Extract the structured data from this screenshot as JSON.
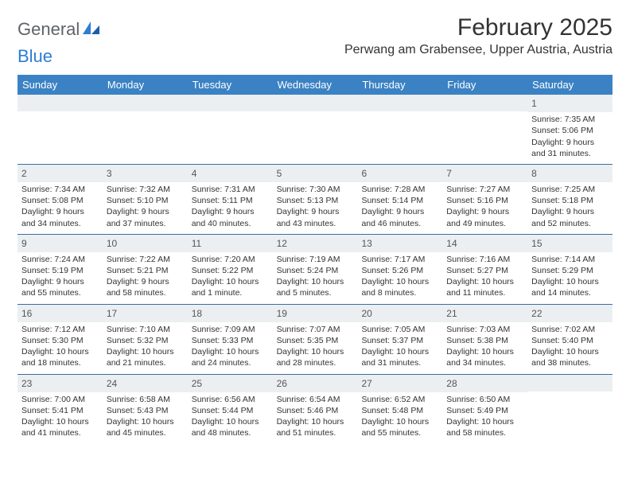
{
  "logo": {
    "general": "General",
    "blue": "Blue"
  },
  "title": "February 2025",
  "location": "Perwang am Grabensee, Upper Austria, Austria",
  "colors": {
    "header_bg": "#3b82c4",
    "header_text": "#ffffff",
    "band_bg": "#eceff1",
    "rule": "#3b6ea5",
    "text": "#333333",
    "logo_gray": "#5f6368",
    "logo_blue": "#2d7dd2"
  },
  "fonts": {
    "title_size_pt": 23,
    "location_size_pt": 12,
    "dow_size_pt": 10,
    "daynum_size_pt": 9,
    "body_size_pt": 8
  },
  "days_of_week": [
    "Sunday",
    "Monday",
    "Tuesday",
    "Wednesday",
    "Thursday",
    "Friday",
    "Saturday"
  ],
  "weeks": [
    [
      null,
      null,
      null,
      null,
      null,
      null,
      {
        "n": "1",
        "sr": "Sunrise: 7:35 AM",
        "ss": "Sunset: 5:06 PM",
        "dl1": "Daylight: 9 hours",
        "dl2": "and 31 minutes."
      }
    ],
    [
      {
        "n": "2",
        "sr": "Sunrise: 7:34 AM",
        "ss": "Sunset: 5:08 PM",
        "dl1": "Daylight: 9 hours",
        "dl2": "and 34 minutes."
      },
      {
        "n": "3",
        "sr": "Sunrise: 7:32 AM",
        "ss": "Sunset: 5:10 PM",
        "dl1": "Daylight: 9 hours",
        "dl2": "and 37 minutes."
      },
      {
        "n": "4",
        "sr": "Sunrise: 7:31 AM",
        "ss": "Sunset: 5:11 PM",
        "dl1": "Daylight: 9 hours",
        "dl2": "and 40 minutes."
      },
      {
        "n": "5",
        "sr": "Sunrise: 7:30 AM",
        "ss": "Sunset: 5:13 PM",
        "dl1": "Daylight: 9 hours",
        "dl2": "and 43 minutes."
      },
      {
        "n": "6",
        "sr": "Sunrise: 7:28 AM",
        "ss": "Sunset: 5:14 PM",
        "dl1": "Daylight: 9 hours",
        "dl2": "and 46 minutes."
      },
      {
        "n": "7",
        "sr": "Sunrise: 7:27 AM",
        "ss": "Sunset: 5:16 PM",
        "dl1": "Daylight: 9 hours",
        "dl2": "and 49 minutes."
      },
      {
        "n": "8",
        "sr": "Sunrise: 7:25 AM",
        "ss": "Sunset: 5:18 PM",
        "dl1": "Daylight: 9 hours",
        "dl2": "and 52 minutes."
      }
    ],
    [
      {
        "n": "9",
        "sr": "Sunrise: 7:24 AM",
        "ss": "Sunset: 5:19 PM",
        "dl1": "Daylight: 9 hours",
        "dl2": "and 55 minutes."
      },
      {
        "n": "10",
        "sr": "Sunrise: 7:22 AM",
        "ss": "Sunset: 5:21 PM",
        "dl1": "Daylight: 9 hours",
        "dl2": "and 58 minutes."
      },
      {
        "n": "11",
        "sr": "Sunrise: 7:20 AM",
        "ss": "Sunset: 5:22 PM",
        "dl1": "Daylight: 10 hours",
        "dl2": "and 1 minute."
      },
      {
        "n": "12",
        "sr": "Sunrise: 7:19 AM",
        "ss": "Sunset: 5:24 PM",
        "dl1": "Daylight: 10 hours",
        "dl2": "and 5 minutes."
      },
      {
        "n": "13",
        "sr": "Sunrise: 7:17 AM",
        "ss": "Sunset: 5:26 PM",
        "dl1": "Daylight: 10 hours",
        "dl2": "and 8 minutes."
      },
      {
        "n": "14",
        "sr": "Sunrise: 7:16 AM",
        "ss": "Sunset: 5:27 PM",
        "dl1": "Daylight: 10 hours",
        "dl2": "and 11 minutes."
      },
      {
        "n": "15",
        "sr": "Sunrise: 7:14 AM",
        "ss": "Sunset: 5:29 PM",
        "dl1": "Daylight: 10 hours",
        "dl2": "and 14 minutes."
      }
    ],
    [
      {
        "n": "16",
        "sr": "Sunrise: 7:12 AM",
        "ss": "Sunset: 5:30 PM",
        "dl1": "Daylight: 10 hours",
        "dl2": "and 18 minutes."
      },
      {
        "n": "17",
        "sr": "Sunrise: 7:10 AM",
        "ss": "Sunset: 5:32 PM",
        "dl1": "Daylight: 10 hours",
        "dl2": "and 21 minutes."
      },
      {
        "n": "18",
        "sr": "Sunrise: 7:09 AM",
        "ss": "Sunset: 5:33 PM",
        "dl1": "Daylight: 10 hours",
        "dl2": "and 24 minutes."
      },
      {
        "n": "19",
        "sr": "Sunrise: 7:07 AM",
        "ss": "Sunset: 5:35 PM",
        "dl1": "Daylight: 10 hours",
        "dl2": "and 28 minutes."
      },
      {
        "n": "20",
        "sr": "Sunrise: 7:05 AM",
        "ss": "Sunset: 5:37 PM",
        "dl1": "Daylight: 10 hours",
        "dl2": "and 31 minutes."
      },
      {
        "n": "21",
        "sr": "Sunrise: 7:03 AM",
        "ss": "Sunset: 5:38 PM",
        "dl1": "Daylight: 10 hours",
        "dl2": "and 34 minutes."
      },
      {
        "n": "22",
        "sr": "Sunrise: 7:02 AM",
        "ss": "Sunset: 5:40 PM",
        "dl1": "Daylight: 10 hours",
        "dl2": "and 38 minutes."
      }
    ],
    [
      {
        "n": "23",
        "sr": "Sunrise: 7:00 AM",
        "ss": "Sunset: 5:41 PM",
        "dl1": "Daylight: 10 hours",
        "dl2": "and 41 minutes."
      },
      {
        "n": "24",
        "sr": "Sunrise: 6:58 AM",
        "ss": "Sunset: 5:43 PM",
        "dl1": "Daylight: 10 hours",
        "dl2": "and 45 minutes."
      },
      {
        "n": "25",
        "sr": "Sunrise: 6:56 AM",
        "ss": "Sunset: 5:44 PM",
        "dl1": "Daylight: 10 hours",
        "dl2": "and 48 minutes."
      },
      {
        "n": "26",
        "sr": "Sunrise: 6:54 AM",
        "ss": "Sunset: 5:46 PM",
        "dl1": "Daylight: 10 hours",
        "dl2": "and 51 minutes."
      },
      {
        "n": "27",
        "sr": "Sunrise: 6:52 AM",
        "ss": "Sunset: 5:48 PM",
        "dl1": "Daylight: 10 hours",
        "dl2": "and 55 minutes."
      },
      {
        "n": "28",
        "sr": "Sunrise: 6:50 AM",
        "ss": "Sunset: 5:49 PM",
        "dl1": "Daylight: 10 hours",
        "dl2": "and 58 minutes."
      },
      null
    ]
  ]
}
